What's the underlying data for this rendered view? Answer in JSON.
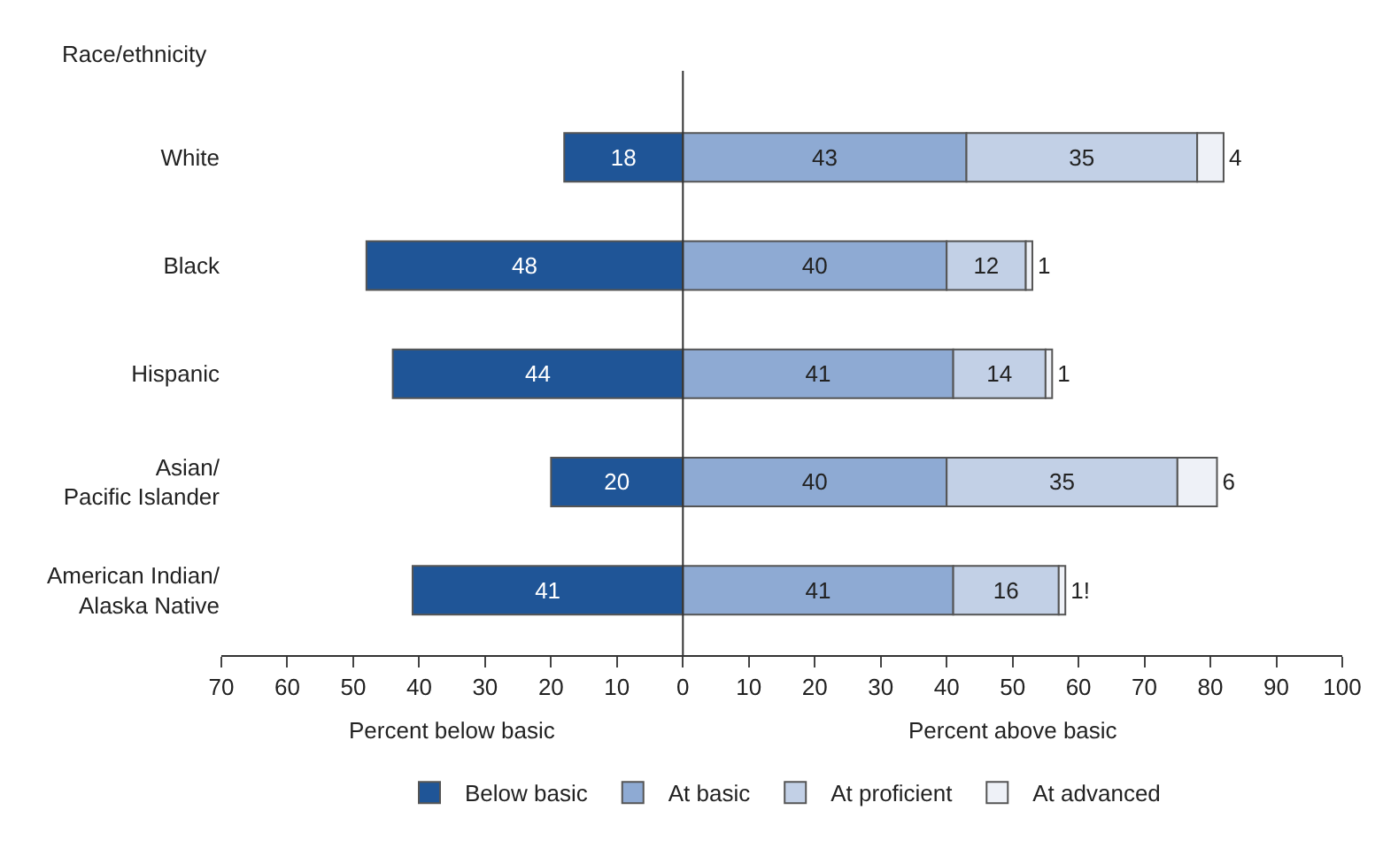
{
  "chart_data": {
    "type": "bar",
    "orientation": "horizontal",
    "ylabel": "Race/ethnicity",
    "categories": [
      "White",
      "Black",
      "Hispanic",
      "Asian/\nPacific Islander",
      "American Indian/\nAlaska Native"
    ],
    "series": [
      {
        "name": "Below basic",
        "color": "#1f5597",
        "values": [
          18,
          48,
          44,
          20,
          41
        ],
        "base": [
          -18,
          -48,
          -44,
          -20,
          -41
        ],
        "value_labels": [
          "18",
          "48",
          "44",
          "20",
          "41"
        ]
      },
      {
        "name": "At basic",
        "color": "#8eaad3",
        "values": [
          43,
          40,
          41,
          40,
          41
        ],
        "base": [
          0,
          0,
          0,
          0,
          0
        ],
        "value_labels": [
          "43",
          "40",
          "41",
          "40",
          "41"
        ]
      },
      {
        "name": "At proficient",
        "color": "#c2d0e6",
        "values": [
          35,
          12,
          14,
          35,
          16
        ],
        "base": [
          43,
          40,
          41,
          40,
          41
        ],
        "value_labels": [
          "35",
          "12",
          "14",
          "35",
          "16"
        ]
      },
      {
        "name": "At advanced",
        "color": "#eef1f7",
        "values": [
          4,
          1,
          1,
          6,
          1
        ],
        "base": [
          78,
          52,
          55,
          75,
          57
        ],
        "value_labels": [
          "4",
          "1",
          "1",
          "6",
          "1!"
        ]
      }
    ],
    "xlim": [
      -70,
      100
    ],
    "xticks": [
      {
        "value": -70,
        "label": "70"
      },
      {
        "value": -60,
        "label": "60"
      },
      {
        "value": -50,
        "label": "50"
      },
      {
        "value": -40,
        "label": "40"
      },
      {
        "value": -30,
        "label": "30"
      },
      {
        "value": -20,
        "label": "20"
      },
      {
        "value": -10,
        "label": "10"
      },
      0,
      10,
      20,
      30,
      40,
      50,
      60,
      70,
      80,
      90,
      100
    ],
    "annotations": [
      "Percent below basic",
      "Percent above basic"
    ],
    "ref_lines": [
      {
        "axis": "x",
        "value": 0
      }
    ],
    "legend": "bottom"
  }
}
